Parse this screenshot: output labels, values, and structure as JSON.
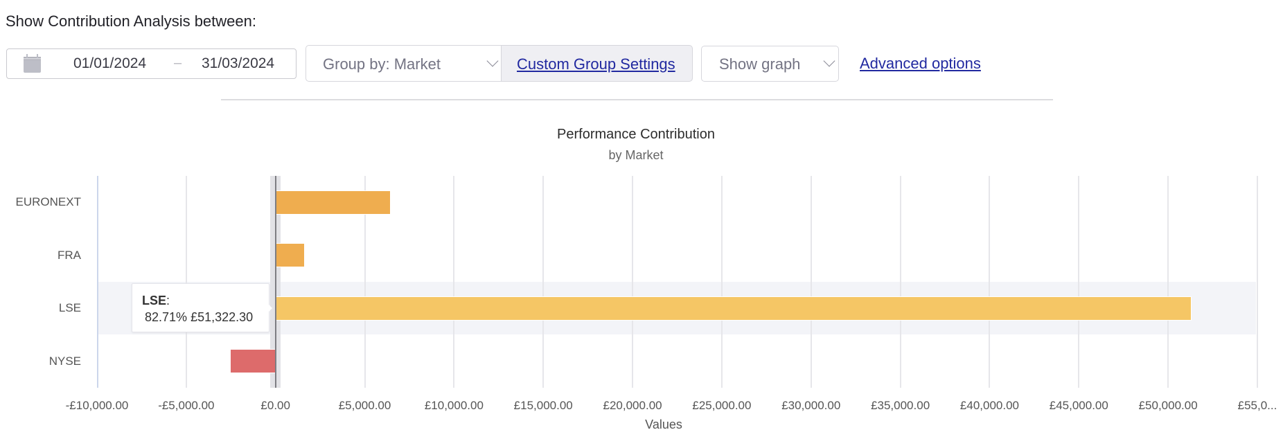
{
  "header": {
    "heading": "Show Contribution Analysis between:"
  },
  "date_range": {
    "icon": "calendar-icon",
    "start": "01/01/2024",
    "separator": "–",
    "end": "31/03/2024"
  },
  "toolbar": {
    "group_by_label": "Group by: Market",
    "custom_group_label": "Custom Group Settings",
    "graph_select_label": "Show graph",
    "advanced_options_label": "Advanced options",
    "link_color": "#2129a0"
  },
  "chart_data": {
    "type": "bar",
    "orientation": "horizontal",
    "title": "Performance Contribution",
    "subtitle": "by Market",
    "xlabel": "Values",
    "ylabel": "",
    "categories": [
      "EURONEXT",
      "FRA",
      "LSE",
      "NYSE"
    ],
    "values": [
      6450,
      1640,
      51322.3,
      -2540
    ],
    "colors": [
      "#efad4f",
      "#efad4f",
      "#f5c665",
      "#dd6b6b"
    ],
    "xlim": [
      -10000,
      55000
    ],
    "x_ticks": [
      "-£10,000.00",
      "-£5,000.00",
      "£0.00",
      "£5,000.00",
      "£10,000.00",
      "£15,000.00",
      "£20,000.00",
      "£25,000.00",
      "£30,000.00",
      "£35,000.00",
      "£40,000.00",
      "£45,000.00",
      "£50,000.00",
      "£55,0..."
    ],
    "grid": true,
    "legend": false,
    "highlighted_category": "LSE",
    "tooltip": {
      "category": "LSE",
      "separator": ":",
      "percent": "82.71%",
      "value": "£51,322.30"
    }
  }
}
